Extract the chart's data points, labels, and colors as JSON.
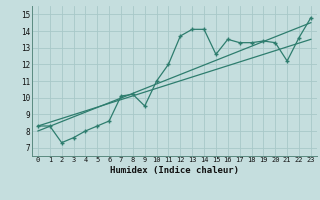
{
  "title": "",
  "xlabel": "Humidex (Indice chaleur)",
  "ylabel": "",
  "xlim": [
    -0.5,
    23.5
  ],
  "ylim": [
    6.5,
    15.5
  ],
  "yticks": [
    7,
    8,
    9,
    10,
    11,
    12,
    13,
    14,
    15
  ],
  "xticks": [
    0,
    1,
    2,
    3,
    4,
    5,
    6,
    7,
    8,
    9,
    10,
    11,
    12,
    13,
    14,
    15,
    16,
    17,
    18,
    19,
    20,
    21,
    22,
    23
  ],
  "bg_color": "#c5dede",
  "line_color": "#2e7d6e",
  "grid_color": "#a8c8c8",
  "line1_x": [
    0,
    1,
    2,
    3,
    4,
    5,
    6,
    7,
    8,
    9,
    10,
    11,
    12,
    13,
    14,
    15,
    16,
    17,
    18,
    19,
    20,
    21,
    22,
    23
  ],
  "line1_y": [
    8.3,
    8.3,
    7.3,
    7.6,
    8.0,
    8.3,
    8.6,
    10.1,
    10.2,
    9.5,
    11.0,
    12.0,
    13.7,
    14.1,
    14.1,
    12.6,
    13.5,
    13.3,
    13.3,
    13.4,
    13.3,
    12.2,
    13.6,
    14.8
  ],
  "line2_x": [
    0,
    23
  ],
  "line2_y": [
    8.0,
    14.5
  ],
  "line3_x": [
    0,
    23
  ],
  "line3_y": [
    8.3,
    13.5
  ]
}
